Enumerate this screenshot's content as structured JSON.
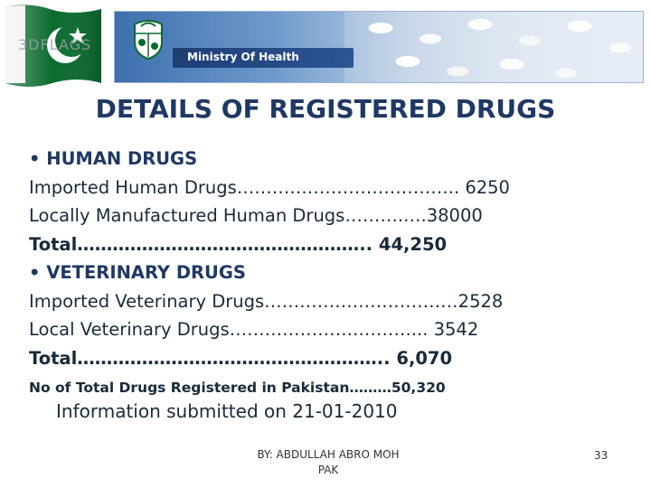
{
  "banner": {
    "watermark": "3DFLAGS",
    "ministry_label": "Ministry Of Health"
  },
  "title": "DETAILS OF REGISTERED DRUGS",
  "human": {
    "heading": "HUMAN DRUGS",
    "imported": "Imported Human Drugs……………………………….. 6250",
    "local": "Locally Manufactured Human Drugs……….….38000",
    "total": "Total………………………………………….. 44,250"
  },
  "veterinary": {
    "heading": "VETERINARY DRUGS",
    "imported": "Imported Veterinary Drugs……………………………2528",
    "local": "Local Veterinary Drugs………………….………... 3542",
    "total": "Total…………………………………………….. 6,070"
  },
  "summary": "No of Total Drugs Registered in Pakistan………50,320",
  "info": "Information submitted on 21-01-2010",
  "footer": {
    "author_line1": "BY: ABDULLAH ABRO MOH",
    "author_line2": "PAK",
    "page_number": "33"
  },
  "colors": {
    "title": "#1f3864",
    "text": "#1a2a3a",
    "flag_green": "#0b6b2e",
    "banner_blue": "#3d6fae"
  },
  "icons": [
    "pakistan-flag-icon",
    "state-emblem-icon"
  ]
}
